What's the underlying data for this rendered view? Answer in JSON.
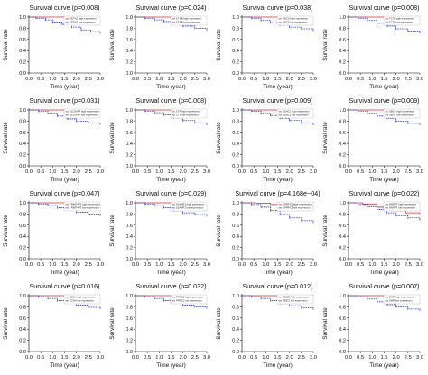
{
  "colors": {
    "high": "#d62728",
    "low": "#2b3cc4",
    "axis": "#000000",
    "legend_border": "#999999"
  },
  "chart_data": [
    {
      "type": "line",
      "title": "Survival curve (p=0.008)",
      "xlabel": "Time (year)",
      "ylabel": "Survival rate",
      "xlim": [
        0,
        3
      ],
      "ylim": [
        0,
        1
      ],
      "x_ticks": [
        "0.0",
        "0.5",
        "1.0",
        "1.5",
        "2.0",
        "2.5",
        "3.0"
      ],
      "y_ticks": [
        "0.0",
        "0.2",
        "0.4",
        "0.6",
        "0.8",
        "1.0"
      ],
      "legend": "top-right",
      "grid": false,
      "series": [
        {
          "name": "CETN1 high expression",
          "color": "#d62728",
          "x": [
            0,
            3
          ],
          "y": [
            1,
            1
          ]
        },
        {
          "name": "CETN1 low expression",
          "color": "#2b3cc4",
          "x": [
            0,
            0.3,
            0.7,
            1.0,
            1.4,
            1.8,
            2.2,
            2.6,
            3.0
          ],
          "y": [
            1,
            0.98,
            0.95,
            0.91,
            0.87,
            0.82,
            0.77,
            0.74,
            0.72
          ]
        }
      ]
    },
    {
      "type": "line",
      "title": "Survival curve (p=0.024)",
      "xlabel": "Time (year)",
      "ylabel": "Survival rate",
      "xlim": [
        0,
        3
      ],
      "ylim": [
        0,
        1
      ],
      "x_ticks": [
        "0.0",
        "0.5",
        "1.0",
        "1.5",
        "2.0",
        "2.5",
        "3.0"
      ],
      "y_ticks": [
        "0.0",
        "0.2",
        "0.4",
        "0.6",
        "0.8",
        "1.0"
      ],
      "legend": "top-right",
      "grid": false,
      "series": [
        {
          "name": "CTNB high expression",
          "color": "#d62728",
          "x": [
            0,
            3
          ],
          "y": [
            1,
            1
          ]
        },
        {
          "name": "CTNB low expression",
          "color": "#2b3cc4",
          "x": [
            0,
            0.4,
            0.8,
            1.2,
            1.6,
            2.0,
            2.5,
            3.0
          ],
          "y": [
            1,
            0.98,
            0.95,
            0.92,
            0.88,
            0.84,
            0.8,
            0.77
          ]
        }
      ]
    },
    {
      "type": "line",
      "title": "Survival curve (p=0.038)",
      "xlabel": "Time (year)",
      "ylabel": "Survival rate",
      "xlim": [
        0,
        3
      ],
      "ylim": [
        0,
        1
      ],
      "x_ticks": [
        "0.0",
        "0.5",
        "1.0",
        "1.5",
        "2.0",
        "2.5",
        "3.0"
      ],
      "y_ticks": [
        "0.0",
        "0.2",
        "0.4",
        "0.6",
        "0.8",
        "1.0"
      ],
      "legend": "top-right",
      "grid": false,
      "series": [
        {
          "name": "ASCS high expression",
          "color": "#d62728",
          "x": [
            0,
            3
          ],
          "y": [
            1,
            1
          ]
        },
        {
          "name": "ASCS low expression",
          "color": "#2b3cc4",
          "x": [
            0,
            0.4,
            0.8,
            1.2,
            1.6,
            2.0,
            2.5,
            3.0
          ],
          "y": [
            1,
            0.98,
            0.94,
            0.9,
            0.86,
            0.82,
            0.79,
            0.76
          ]
        }
      ]
    },
    {
      "type": "line",
      "title": "Survival curve (p=0.008)",
      "xlabel": "Time (year)",
      "ylabel": "Survival rate",
      "xlim": [
        0,
        3
      ],
      "ylim": [
        0,
        1
      ],
      "x_ticks": [
        "0.0",
        "0.5",
        "1.0",
        "1.5",
        "2.0",
        "2.5",
        "3.0"
      ],
      "y_ticks": [
        "0.0",
        "0.2",
        "0.4",
        "0.6",
        "0.8",
        "1.0"
      ],
      "legend": "top-right",
      "grid": false,
      "series": [
        {
          "name": "TC78 high expression",
          "color": "#d62728",
          "x": [
            0,
            3
          ],
          "y": [
            1,
            1
          ]
        },
        {
          "name": "TC78 low expression",
          "color": "#2b3cc4",
          "x": [
            0,
            0.4,
            0.8,
            1.2,
            1.6,
            2.0,
            2.5,
            3.0
          ],
          "y": [
            1,
            0.98,
            0.94,
            0.89,
            0.84,
            0.79,
            0.75,
            0.72
          ]
        }
      ]
    },
    {
      "type": "line",
      "title": "Survival curve (p=0.031)",
      "xlabel": "Time (year)",
      "ylabel": "Survival rate",
      "xlim": [
        0,
        3
      ],
      "ylim": [
        0,
        1
      ],
      "x_ticks": [
        "0.0",
        "0.5",
        "1.0",
        "1.5",
        "2.0",
        "2.5",
        "3.0"
      ],
      "y_ticks": [
        "0.0",
        "0.2",
        "0.4",
        "0.6",
        "0.8",
        "1.0"
      ],
      "legend": "top-right",
      "grid": false,
      "series": [
        {
          "name": "SLC6A6P high expression",
          "color": "#d62728",
          "x": [
            0,
            3
          ],
          "y": [
            1,
            1
          ]
        },
        {
          "name": "SLC6A6P low expression",
          "color": "#2b3cc4",
          "x": [
            0,
            0.4,
            0.8,
            1.2,
            1.6,
            2.0,
            2.5,
            3.0
          ],
          "y": [
            1,
            0.98,
            0.94,
            0.89,
            0.84,
            0.8,
            0.77,
            0.75
          ]
        }
      ]
    },
    {
      "type": "line",
      "title": "Survival curve (p=0.008)",
      "xlabel": "Time (year)",
      "ylabel": "Survival rate",
      "xlim": [
        0,
        3
      ],
      "ylim": [
        0,
        1
      ],
      "x_ticks": [
        "0.0",
        "0.5",
        "1.0",
        "1.5",
        "2.0",
        "2.5",
        "3.0"
      ],
      "y_ticks": [
        "0.0",
        "0.2",
        "0.4",
        "0.6",
        "0.8",
        "1.0"
      ],
      "legend": "top-right",
      "grid": false,
      "series": [
        {
          "name": "CTF high expression",
          "color": "#d62728",
          "x": [
            0,
            3
          ],
          "y": [
            1,
            1
          ]
        },
        {
          "name": "CTF low expression",
          "color": "#2b3cc4",
          "x": [
            0,
            0.4,
            0.8,
            1.2,
            1.6,
            2.0,
            2.5,
            3.0
          ],
          "y": [
            1,
            0.98,
            0.95,
            0.91,
            0.86,
            0.81,
            0.77,
            0.74
          ]
        }
      ]
    },
    {
      "type": "line",
      "title": "Survival curve (p=0.009)",
      "xlabel": "Time (year)",
      "ylabel": "Survival rate",
      "xlim": [
        0,
        3
      ],
      "ylim": [
        0,
        1
      ],
      "x_ticks": [
        "0.0",
        "0.5",
        "1.0",
        "1.5",
        "2.0",
        "2.5",
        "3.0"
      ],
      "y_ticks": [
        "0.0",
        "0.2",
        "0.4",
        "0.6",
        "0.8",
        "1.0"
      ],
      "legend": "top-right",
      "grid": false,
      "series": [
        {
          "name": "SLMC1 high expression",
          "color": "#d62728",
          "x": [
            0,
            3
          ],
          "y": [
            1,
            1
          ]
        },
        {
          "name": "SLMC1 low expression",
          "color": "#2b3cc4",
          "x": [
            0,
            0.4,
            0.8,
            1.2,
            1.6,
            2.0,
            2.5,
            3.0
          ],
          "y": [
            1,
            0.98,
            0.94,
            0.9,
            0.85,
            0.81,
            0.77,
            0.74
          ]
        }
      ]
    },
    {
      "type": "line",
      "title": "Survival curve (p=0.009)",
      "xlabel": "Time (year)",
      "ylabel": "Survival rate",
      "xlim": [
        0,
        3
      ],
      "ylim": [
        0,
        1
      ],
      "x_ticks": [
        "0.0",
        "0.5",
        "1.0",
        "1.5",
        "2.0",
        "2.5",
        "3.0"
      ],
      "y_ticks": [
        "0.0",
        "0.2",
        "0.4",
        "0.6",
        "0.8",
        "1.0"
      ],
      "legend": "top-right",
      "grid": false,
      "series": [
        {
          "name": "SBOF high expression",
          "color": "#d62728",
          "x": [
            0,
            3
          ],
          "y": [
            1,
            1
          ]
        },
        {
          "name": "SBOF low expression",
          "color": "#2b3cc4",
          "x": [
            0,
            0.4,
            0.8,
            1.2,
            1.6,
            2.0,
            2.5,
            3.0
          ],
          "y": [
            1,
            0.98,
            0.94,
            0.89,
            0.85,
            0.8,
            0.76,
            0.74
          ]
        }
      ]
    },
    {
      "type": "line",
      "title": "Survival curve (p=0.047)",
      "xlabel": "Time (year)",
      "ylabel": "Survival rate",
      "xlim": [
        0,
        3
      ],
      "ylim": [
        0,
        1
      ],
      "x_ticks": [
        "0.0",
        "0.5",
        "1.0",
        "1.5",
        "2.0",
        "2.5",
        "3.0"
      ],
      "y_ticks": [
        "0.0",
        "0.2",
        "0.4",
        "0.6",
        "0.8",
        "1.0"
      ],
      "legend": "top-right",
      "grid": false,
      "series": [
        {
          "name": "TRIM74P3 high expression",
          "color": "#d62728",
          "x": [
            0,
            3
          ],
          "y": [
            1,
            1
          ]
        },
        {
          "name": "TRIM74P3 low expression",
          "color": "#2b3cc4",
          "x": [
            0,
            0.4,
            0.8,
            1.2,
            1.6,
            2.0,
            2.5,
            3.0
          ],
          "y": [
            1,
            0.98,
            0.95,
            0.91,
            0.87,
            0.83,
            0.8,
            0.78
          ]
        }
      ]
    },
    {
      "type": "line",
      "title": "Survival curve (p=0.029)",
      "xlabel": "Time (year)",
      "ylabel": "Survival rate",
      "xlim": [
        0,
        3
      ],
      "ylim": [
        0,
        1
      ],
      "x_ticks": [
        "0.0",
        "0.5",
        "1.0",
        "1.5",
        "2.0",
        "2.5",
        "3.0"
      ],
      "y_ticks": [
        "0.0",
        "0.2",
        "0.4",
        "0.6",
        "0.8",
        "1.0"
      ],
      "legend": "top-right",
      "grid": false,
      "series": [
        {
          "name": "SLAMF1 high expression",
          "color": "#d62728",
          "x": [
            0,
            3
          ],
          "y": [
            1,
            1
          ]
        },
        {
          "name": "SLAMF1 low expression",
          "color": "#2b3cc4",
          "x": [
            0,
            0.4,
            0.8,
            1.2,
            1.6,
            2.0,
            2.5,
            3.0
          ],
          "y": [
            1,
            0.98,
            0.95,
            0.91,
            0.86,
            0.82,
            0.79,
            0.77
          ]
        }
      ]
    },
    {
      "type": "line",
      "title": "Survival curve (p=4.168e−04)",
      "xlabel": "Time (year)",
      "ylabel": "Survival rate",
      "xlim": [
        0,
        3
      ],
      "ylim": [
        0,
        1
      ],
      "x_ticks": [
        "0.0",
        "0.5",
        "1.0",
        "1.5",
        "2.0",
        "2.5",
        "3.0"
      ],
      "y_ticks": [
        "0.0",
        "0.2",
        "0.4",
        "0.6",
        "0.8",
        "1.0"
      ],
      "legend": "top-right",
      "grid": false,
      "series": [
        {
          "name": "GPRFX2 high expression",
          "color": "#d62728",
          "x": [
            0,
            0.6,
            1.2,
            1.8,
            2.4,
            3.0
          ],
          "y": [
            1,
            0.99,
            0.97,
            0.95,
            0.93,
            0.92
          ]
        },
        {
          "name": "GPRFX2 low expression",
          "color": "#2b3cc4",
          "x": [
            0,
            0.4,
            0.8,
            1.2,
            1.6,
            2.0,
            2.5,
            3.0
          ],
          "y": [
            1,
            0.97,
            0.92,
            0.86,
            0.79,
            0.73,
            0.68,
            0.65
          ]
        }
      ]
    },
    {
      "type": "line",
      "title": "Survival curve (p=0.022)",
      "xlabel": "Time (year)",
      "ylabel": "Survival rate",
      "xlim": [
        0,
        3
      ],
      "ylim": [
        0,
        1
      ],
      "x_ticks": [
        "0.0",
        "0.5",
        "1.0",
        "1.5",
        "2.0",
        "2.5",
        "3.0"
      ],
      "y_ticks": [
        "0.0",
        "0.2",
        "0.4",
        "0.6",
        "0.8",
        "1.0"
      ],
      "legend": "top-right",
      "grid": false,
      "series": [
        {
          "name": "HNRPT high expression",
          "color": "#d62728",
          "x": [
            0,
            0.6,
            1.2,
            1.8,
            2.4,
            3.0
          ],
          "y": [
            1,
            0.98,
            0.92,
            0.86,
            0.82,
            0.8
          ]
        },
        {
          "name": "HNRPT low expression",
          "color": "#2b3cc4",
          "x": [
            0,
            0.4,
            0.8,
            1.2,
            1.6,
            2.0,
            2.5,
            3.0
          ],
          "y": [
            1,
            0.97,
            0.93,
            0.88,
            0.82,
            0.77,
            0.73,
            0.7
          ]
        }
      ]
    },
    {
      "type": "line",
      "title": "Survival curve (p=0.016)",
      "xlabel": "Time (year)",
      "ylabel": "Survival rate",
      "xlim": [
        0,
        3
      ],
      "ylim": [
        0,
        1
      ],
      "x_ticks": [
        "0.0",
        "0.5",
        "1.0",
        "1.5",
        "2.0",
        "2.5",
        "3.0"
      ],
      "y_ticks": [
        "0.0",
        "0.2",
        "0.4",
        "0.6",
        "0.8",
        "1.0"
      ],
      "legend": "top-right",
      "grid": false,
      "series": [
        {
          "name": "CCN4 high expression",
          "color": "#d62728",
          "x": [
            0,
            3
          ],
          "y": [
            1,
            1
          ]
        },
        {
          "name": "CCN4 low expression",
          "color": "#2b3cc4",
          "x": [
            0,
            0.4,
            0.8,
            1.2,
            1.6,
            2.0,
            2.5,
            3.0
          ],
          "y": [
            1,
            0.98,
            0.95,
            0.91,
            0.87,
            0.83,
            0.79,
            0.77
          ]
        }
      ]
    },
    {
      "type": "line",
      "title": "Survival curve (p=0.032)",
      "xlabel": "Time (year)",
      "ylabel": "Survival rate",
      "xlim": [
        0,
        3
      ],
      "ylim": [
        0,
        1
      ],
      "x_ticks": [
        "0.0",
        "0.5",
        "1.0",
        "1.5",
        "2.0",
        "2.5",
        "3.0"
      ],
      "y_ticks": [
        "0.0",
        "0.2",
        "0.4",
        "0.6",
        "0.8",
        "1.0"
      ],
      "legend": "top-right",
      "grid": false,
      "series": [
        {
          "name": "PRRC2 high expression",
          "color": "#d62728",
          "x": [
            0,
            3
          ],
          "y": [
            1,
            1
          ]
        },
        {
          "name": "PRRC2 low expression",
          "color": "#2b3cc4",
          "x": [
            0,
            0.4,
            0.8,
            1.2,
            1.6,
            2.0,
            2.5,
            3.0
          ],
          "y": [
            1,
            0.98,
            0.95,
            0.91,
            0.87,
            0.83,
            0.8,
            0.78
          ]
        }
      ]
    },
    {
      "type": "line",
      "title": "Survival curve (p=0.012)",
      "xlabel": "Time (year)",
      "ylabel": "Survival rate",
      "xlim": [
        0,
        3
      ],
      "ylim": [
        0,
        1
      ],
      "x_ticks": [
        "0.0",
        "0.5",
        "1.0",
        "1.5",
        "2.0",
        "2.5",
        "3.0"
      ],
      "y_ticks": [
        "0.0",
        "0.2",
        "0.4",
        "0.6",
        "0.8",
        "1.0"
      ],
      "legend": "top-right",
      "grid": false,
      "series": [
        {
          "name": "TRIC2 high expression",
          "color": "#d62728",
          "x": [
            0,
            3
          ],
          "y": [
            1,
            1
          ]
        },
        {
          "name": "TRIC2 low expression",
          "color": "#2b3cc4",
          "x": [
            0,
            0.4,
            0.8,
            1.2,
            1.6,
            2.0,
            2.5,
            3.0
          ],
          "y": [
            1,
            0.98,
            0.95,
            0.91,
            0.86,
            0.82,
            0.78,
            0.76
          ]
        }
      ]
    },
    {
      "type": "line",
      "title": "Survival curve (p=0.007)",
      "xlabel": "Time (year)",
      "ylabel": "Survival rate",
      "xlim": [
        0,
        3
      ],
      "ylim": [
        0,
        1
      ],
      "x_ticks": [
        "0.0",
        "0.5",
        "1.0",
        "1.5",
        "2.0",
        "2.5",
        "3.0"
      ],
      "y_ticks": [
        "0.0",
        "0.2",
        "0.4",
        "0.6",
        "0.8",
        "1.0"
      ],
      "legend": "top-right",
      "grid": false,
      "series": [
        {
          "name": "ZWP high expression",
          "color": "#d62728",
          "x": [
            0,
            3
          ],
          "y": [
            1,
            1
          ]
        },
        {
          "name": "ZWP low expression",
          "color": "#2b3cc4",
          "x": [
            0,
            0.4,
            0.8,
            1.2,
            1.6,
            2.0,
            2.5,
            3.0
          ],
          "y": [
            1,
            0.98,
            0.94,
            0.89,
            0.84,
            0.8,
            0.76,
            0.74
          ]
        }
      ]
    }
  ]
}
